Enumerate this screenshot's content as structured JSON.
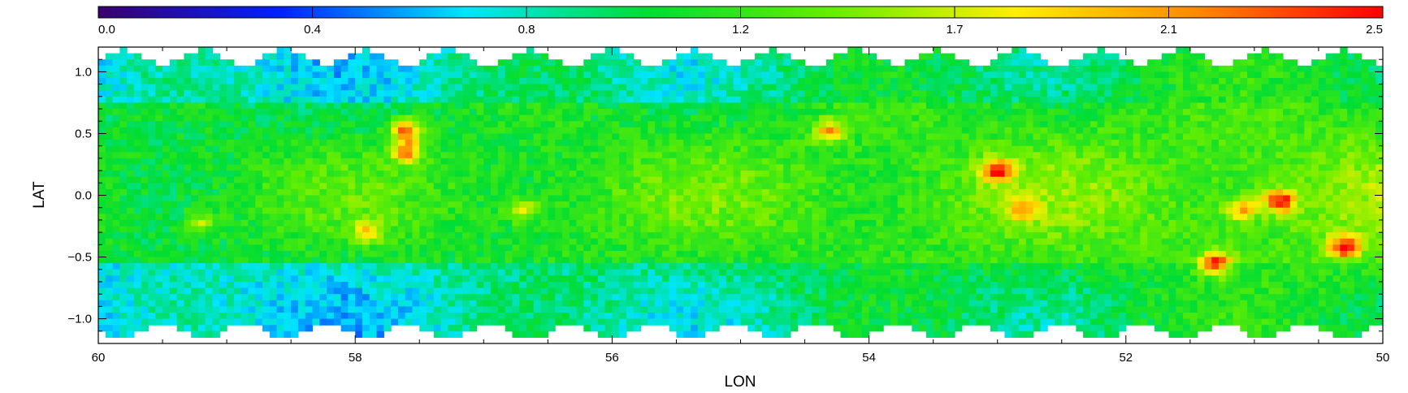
{
  "chart_data": {
    "type": "heatmap",
    "title": "",
    "xlabel": "LON",
    "ylabel": "LAT",
    "xlim": [
      60,
      50
    ],
    "ylim": [
      -1.2,
      1.2
    ],
    "x_ticks": [
      60,
      58,
      56,
      54,
      52,
      50
    ],
    "y_ticks": [
      1.0,
      0.5,
      0.0,
      -0.5,
      -1.0
    ],
    "y_tick_labels": [
      "1.0",
      "0.5",
      "0.0",
      "−0.5",
      "−1.0"
    ],
    "colorbar": {
      "position": "top",
      "range": [
        0.0,
        2.5
      ],
      "tick_labels": [
        "0.0",
        "0.4",
        "0.8",
        "1.2",
        "1.7",
        "2.1",
        "2.5"
      ],
      "colors": [
        "#3a006e",
        "#0022ff",
        "#00e5ff",
        "#00dd33",
        "#66ee00",
        "#ffee00",
        "#ff8800",
        "#ff0000"
      ]
    },
    "grid": false,
    "lat_coverage": [
      -1.1,
      1.12
    ],
    "features": [
      {
        "lon": 57.6,
        "lat": 0.35,
        "value": 2.2
      },
      {
        "lon": 57.6,
        "lat": 0.52,
        "value": 2.4
      },
      {
        "lon": 57.9,
        "lat": -0.3,
        "value": 2.0
      },
      {
        "lon": 56.7,
        "lat": -0.12,
        "value": 1.9
      },
      {
        "lon": 59.2,
        "lat": -0.22,
        "value": 1.8
      },
      {
        "lon": 54.3,
        "lat": 0.52,
        "value": 2.2
      },
      {
        "lon": 53.0,
        "lat": 0.2,
        "value": 2.5
      },
      {
        "lon": 52.8,
        "lat": -0.12,
        "value": 1.9
      },
      {
        "lon": 51.3,
        "lat": -0.55,
        "value": 2.4
      },
      {
        "lon": 51.1,
        "lat": -0.12,
        "value": 2.0
      },
      {
        "lon": 50.8,
        "lat": -0.05,
        "value": 2.5
      },
      {
        "lon": 50.3,
        "lat": -0.42,
        "value": 2.5
      }
    ]
  }
}
